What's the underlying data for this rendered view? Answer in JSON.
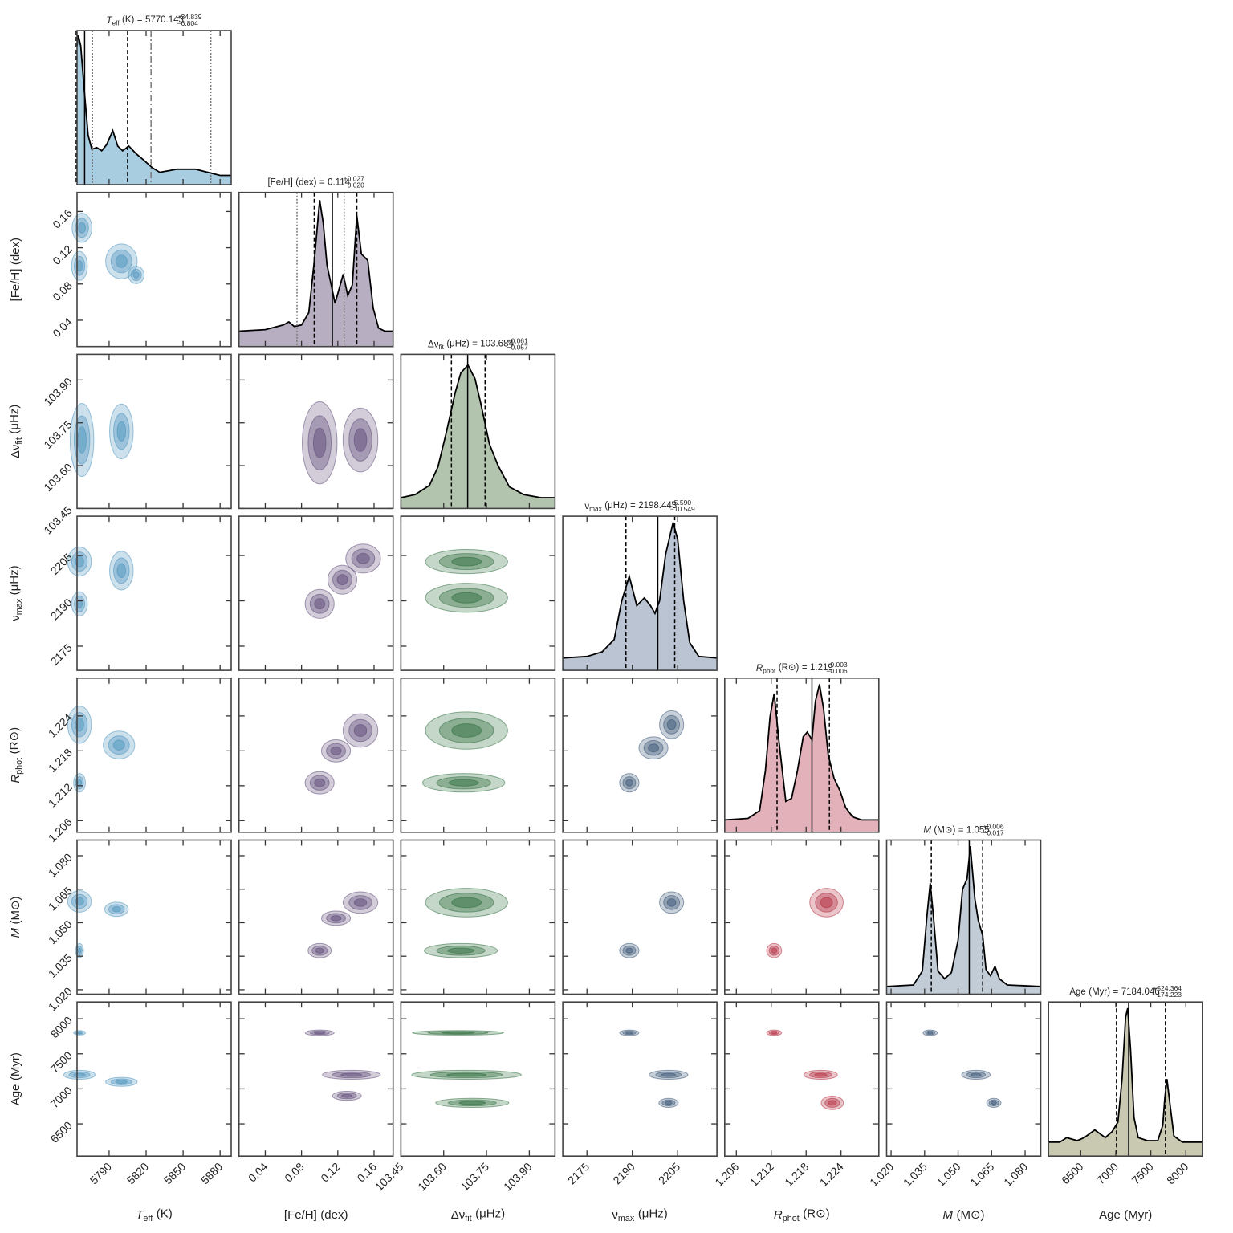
{
  "chart_data": {
    "type": "corner",
    "equals": "=",
    "density_lim": [
      0,
      1
    ],
    "parameters": [
      {
        "symbol": "T",
        "sub": "eff",
        "unit": "(K)",
        "italic": true,
        "median": 5770.143,
        "err_plus": {
          "value": 34.839,
          "label": "+34.839"
        },
        "err_minus": {
          "value": -6.804,
          "label": "−6.804"
        },
        "lim": [
          5764,
          5889
        ],
        "ticks": [
          5790,
          5820,
          5850,
          5880
        ],
        "fill": "#a9cde0",
        "color": "#4d93bd",
        "dotted": [
          5776.5,
          5872.5
        ],
        "dashdot": [
          5824
        ],
        "kde_x": [
          5764,
          5765,
          5767,
          5770,
          5773,
          5776,
          5780,
          5784,
          5788,
          5793,
          5797,
          5801,
          5806,
          5812,
          5818,
          5825,
          5831,
          5838,
          5845,
          5852,
          5860,
          5870,
          5880,
          5889
        ],
        "kde_y": [
          0.9,
          0.97,
          0.9,
          0.6,
          0.32,
          0.23,
          0.24,
          0.22,
          0.26,
          0.35,
          0.25,
          0.22,
          0.25,
          0.2,
          0.16,
          0.11,
          0.08,
          0.09,
          0.1,
          0.1,
          0.1,
          0.08,
          0.06,
          0.06
        ]
      },
      {
        "symbol": "[Fe/H]",
        "unit": "(dex)",
        "italic": false,
        "median": 0.114,
        "err_plus": {
          "value": 0.027,
          "label": "+0.027"
        },
        "err_minus": {
          "value": -0.02,
          "label": "−0.020"
        },
        "lim": [
          0.011,
          0.181
        ],
        "ticks": [
          0.04,
          0.08,
          0.12,
          0.16
        ],
        "fill": "#b8aec2",
        "color": "#5e4a78",
        "dotted": [
          0.075,
          0.127
        ],
        "kde_x": [
          0.011,
          0.04,
          0.06,
          0.066,
          0.072,
          0.08,
          0.088,
          0.094,
          0.1,
          0.104,
          0.108,
          0.117,
          0.126,
          0.131,
          0.136,
          0.141,
          0.146,
          0.153,
          0.159,
          0.165,
          0.172,
          0.181
        ],
        "kde_y": [
          0.1,
          0.11,
          0.14,
          0.16,
          0.13,
          0.14,
          0.22,
          0.55,
          0.95,
          0.8,
          0.53,
          0.28,
          0.47,
          0.33,
          0.4,
          0.85,
          0.6,
          0.56,
          0.25,
          0.12,
          0.1,
          0.1
        ]
      },
      {
        "symbol": "Δν",
        "sub": "fit",
        "unit": "(μHz)",
        "italic": false,
        "median": 103.684,
        "err_plus": {
          "value": 0.061,
          "label": "+0.061"
        },
        "err_minus": {
          "value": -0.057,
          "label": "−0.057"
        },
        "lim": [
          103.45,
          103.99
        ],
        "ticks": [
          103.45,
          {
            "value": 103.6,
            "label": "103.60"
          },
          103.75,
          {
            "value": 103.9,
            "label": "103.90"
          }
        ],
        "fill": "#b2c4ae",
        "color": "#2f6e3e",
        "kde_x": [
          103.45,
          103.5,
          103.55,
          103.58,
          103.61,
          103.64,
          103.66,
          103.685,
          103.71,
          103.73,
          103.76,
          103.79,
          103.83,
          103.88,
          103.94,
          103.99
        ],
        "kde_y": [
          0.07,
          0.09,
          0.15,
          0.27,
          0.5,
          0.75,
          0.88,
          0.93,
          0.84,
          0.68,
          0.42,
          0.28,
          0.14,
          0.09,
          0.07,
          0.07
        ]
      },
      {
        "symbol": "ν",
        "sub": "max",
        "unit": "(μHz)",
        "italic": false,
        "median": 2198.443,
        "err_plus": {
          "value": 5.59,
          "label": "+5.590"
        },
        "err_minus": {
          "value": -10.549,
          "label": "−10.549"
        },
        "lim": [
          2167,
          2218
        ],
        "ticks": [
          2175,
          2190,
          2205
        ],
        "fill": "#bac4d2",
        "color": "#3a5677",
        "kde_x": [
          2167,
          2175,
          2180,
          2184,
          2186.5,
          2189,
          2191.5,
          2194,
          2196,
          2197.5,
          2199,
          2201,
          2203.5,
          2205,
          2207,
          2209,
          2212,
          2218
        ],
        "kde_y": [
          0.08,
          0.09,
          0.12,
          0.2,
          0.45,
          0.61,
          0.42,
          0.47,
          0.42,
          0.37,
          0.45,
          0.75,
          0.96,
          0.85,
          0.45,
          0.18,
          0.09,
          0.08
        ]
      },
      {
        "symbol": "R",
        "sub": "phot",
        "unit": "(R⊙)",
        "italic": true,
        "median": 1.219,
        "err_plus": {
          "value": 0.003,
          "label": "+0.003"
        },
        "err_minus": {
          "value": -0.006,
          "label": "−0.006"
        },
        "lim": [
          1.204,
          1.2305
        ],
        "ticks": [
          1.206,
          1.212,
          1.218,
          1.224
        ],
        "fill": "#e2b1ba",
        "color": "#b32d40",
        "kde_x": [
          1.204,
          1.208,
          1.21,
          1.211,
          1.2118,
          1.2125,
          1.2133,
          1.2145,
          1.2155,
          1.2165,
          1.2175,
          1.2182,
          1.219,
          1.2196,
          1.2203,
          1.221,
          1.2218,
          1.2228,
          1.2238,
          1.2248,
          1.226,
          1.2275,
          1.2305
        ],
        "kde_y": [
          0.08,
          0.09,
          0.14,
          0.4,
          0.75,
          0.9,
          0.6,
          0.2,
          0.22,
          0.4,
          0.62,
          0.65,
          0.6,
          0.85,
          0.96,
          0.8,
          0.5,
          0.35,
          0.27,
          0.16,
          0.1,
          0.08,
          0.08
        ]
      },
      {
        "symbol": "M",
        "unit": "(M⊙)",
        "italic": true,
        "median": 1.055,
        "err_plus": {
          "value": 0.006,
          "label": "+0.006"
        },
        "err_minus": {
          "value": -0.017,
          "label": "−0.017"
        },
        "lim": [
          1.018,
          1.087
        ],
        "ticks": [
          {
            "value": 1.02,
            "label": "1.020"
          },
          1.035,
          {
            "value": 1.05,
            "label": "1.050"
          },
          1.065,
          {
            "value": 1.08,
            "label": "1.080"
          }
        ],
        "fill": "#c2ccd6",
        "color": "#3a5677",
        "kde_x": [
          1.018,
          1.03,
          1.034,
          1.036,
          1.0375,
          1.039,
          1.041,
          1.044,
          1.047,
          1.05,
          1.052,
          1.054,
          1.0555,
          1.0575,
          1.059,
          1.061,
          1.0625,
          1.0645,
          1.0665,
          1.0685,
          1.072,
          1.087
        ],
        "kde_y": [
          0.05,
          0.06,
          0.15,
          0.5,
          0.72,
          0.5,
          0.15,
          0.1,
          0.14,
          0.35,
          0.68,
          0.75,
          0.96,
          0.62,
          0.48,
          0.38,
          0.16,
          0.12,
          0.18,
          0.1,
          0.06,
          0.05
        ]
      },
      {
        "symbol": "Age",
        "unit": "(Myr)",
        "italic": false,
        "median": 7184.046,
        "err_plus": {
          "value": 524.364,
          "label": "+524.364"
        },
        "err_minus": {
          "value": -174.223,
          "label": "−174.223"
        },
        "lim": [
          6040,
          8240
        ],
        "ticks": [
          6500,
          7000,
          7500,
          8000
        ],
        "fill": "#c9c9b2",
        "kde_x": [
          6040,
          6200,
          6300,
          6450,
          6550,
          6700,
          6850,
          6950,
          7030,
          7090,
          7140,
          7170,
          7210,
          7260,
          7320,
          7450,
          7600,
          7670,
          7700,
          7730,
          7770,
          7830,
          7950,
          8240
        ],
        "kde_y": [
          0.09,
          0.09,
          0.12,
          0.1,
          0.12,
          0.17,
          0.12,
          0.16,
          0.22,
          0.5,
          0.9,
          0.96,
          0.7,
          0.25,
          0.12,
          0.1,
          0.1,
          0.2,
          0.38,
          0.5,
          0.35,
          0.13,
          0.09,
          0.09
        ]
      }
    ],
    "contours": [
      [
        [
          [
            5766,
            0.1,
            4,
            0.01
          ],
          [
            5768,
            0.142,
            5,
            0.01
          ],
          [
            5800,
            0.105,
            8,
            0.012
          ],
          [
            5812,
            0.09,
            4,
            0.006
          ]
        ]
      ],
      [
        [
          [
            5768,
            103.69,
            6,
            0.08
          ],
          [
            5800,
            103.72,
            6,
            0.06
          ]
        ],
        [
          [
            0.1,
            103.68,
            0.012,
            0.09
          ],
          [
            0.145,
            103.69,
            0.012,
            0.07
          ]
        ]
      ],
      [
        [
          [
            5766,
            2203,
            6,
            3
          ],
          [
            5766,
            2189,
            4,
            2.5
          ],
          [
            5800,
            2200,
            6,
            4
          ]
        ],
        [
          [
            0.1,
            2189,
            0.01,
            3
          ],
          [
            0.148,
            2204,
            0.012,
            3
          ],
          [
            0.125,
            2197,
            0.01,
            3
          ]
        ],
        [
          [
            103.68,
            2203,
            0.09,
            2.5
          ],
          [
            103.68,
            2191,
            0.09,
            3
          ]
        ]
      ],
      [
        [
          [
            5766,
            1.2225,
            6,
            0.002
          ],
          [
            5766,
            1.2125,
            3,
            0.001
          ],
          [
            5798,
            1.219,
            8,
            0.0015
          ]
        ],
        [
          [
            0.1,
            1.2125,
            0.01,
            0.0012
          ],
          [
            0.145,
            1.2215,
            0.012,
            0.0018
          ],
          [
            0.118,
            1.218,
            0.01,
            0.0012
          ]
        ],
        [
          [
            103.68,
            1.2215,
            0.09,
            0.002
          ],
          [
            103.67,
            1.2125,
            0.09,
            0.001
          ]
        ],
        [
          [
            2189,
            1.2125,
            2,
            0.001
          ],
          [
            2203,
            1.2225,
            2.5,
            0.0015
          ],
          [
            2197,
            1.2185,
            3,
            0.0012
          ]
        ]
      ],
      [
        [
          [
            5766,
            1.0595,
            6,
            0.003
          ],
          [
            5766,
            1.0375,
            2,
            0.002
          ],
          [
            5796,
            1.056,
            6,
            0.002
          ]
        ],
        [
          [
            0.1,
            1.0375,
            0.008,
            0.002
          ],
          [
            0.145,
            1.059,
            0.012,
            0.003
          ],
          [
            0.118,
            1.052,
            0.01,
            0.002
          ]
        ],
        [
          [
            103.68,
            1.059,
            0.09,
            0.004
          ],
          [
            103.66,
            1.0375,
            0.08,
            0.002
          ]
        ],
        [
          [
            2189,
            1.0375,
            2,
            0.002
          ],
          [
            2203,
            1.059,
            2.5,
            0.003
          ]
        ],
        [
          [
            1.2125,
            1.0375,
            0.0008,
            0.002
          ],
          [
            1.2215,
            1.059,
            0.0018,
            0.004
          ]
        ]
      ],
      [
        [
          [
            5766,
            7200,
            8,
            40
          ],
          [
            5766,
            7800,
            3,
            20
          ],
          [
            5800,
            7100,
            8,
            40
          ]
        ],
        [
          [
            0.1,
            7800,
            0.01,
            25
          ],
          [
            0.135,
            7200,
            0.02,
            40
          ],
          [
            0.13,
            6900,
            0.01,
            40
          ]
        ],
        [
          [
            103.65,
            7800,
            0.1,
            20
          ],
          [
            103.68,
            7200,
            0.12,
            40
          ],
          [
            103.7,
            6800,
            0.08,
            40
          ]
        ],
        [
          [
            2189,
            7800,
            2,
            25
          ],
          [
            2202,
            7200,
            4,
            40
          ],
          [
            2202,
            6800,
            2,
            40
          ]
        ],
        [
          [
            1.2125,
            7800,
            0.0008,
            25
          ],
          [
            1.2205,
            7200,
            0.0018,
            40
          ],
          [
            1.2225,
            6800,
            0.0012,
            60
          ]
        ],
        [
          [
            1.0375,
            7800,
            0.002,
            25
          ],
          [
            1.058,
            7200,
            0.004,
            40
          ],
          [
            1.066,
            6800,
            0.002,
            40
          ]
        ]
      ]
    ]
  }
}
